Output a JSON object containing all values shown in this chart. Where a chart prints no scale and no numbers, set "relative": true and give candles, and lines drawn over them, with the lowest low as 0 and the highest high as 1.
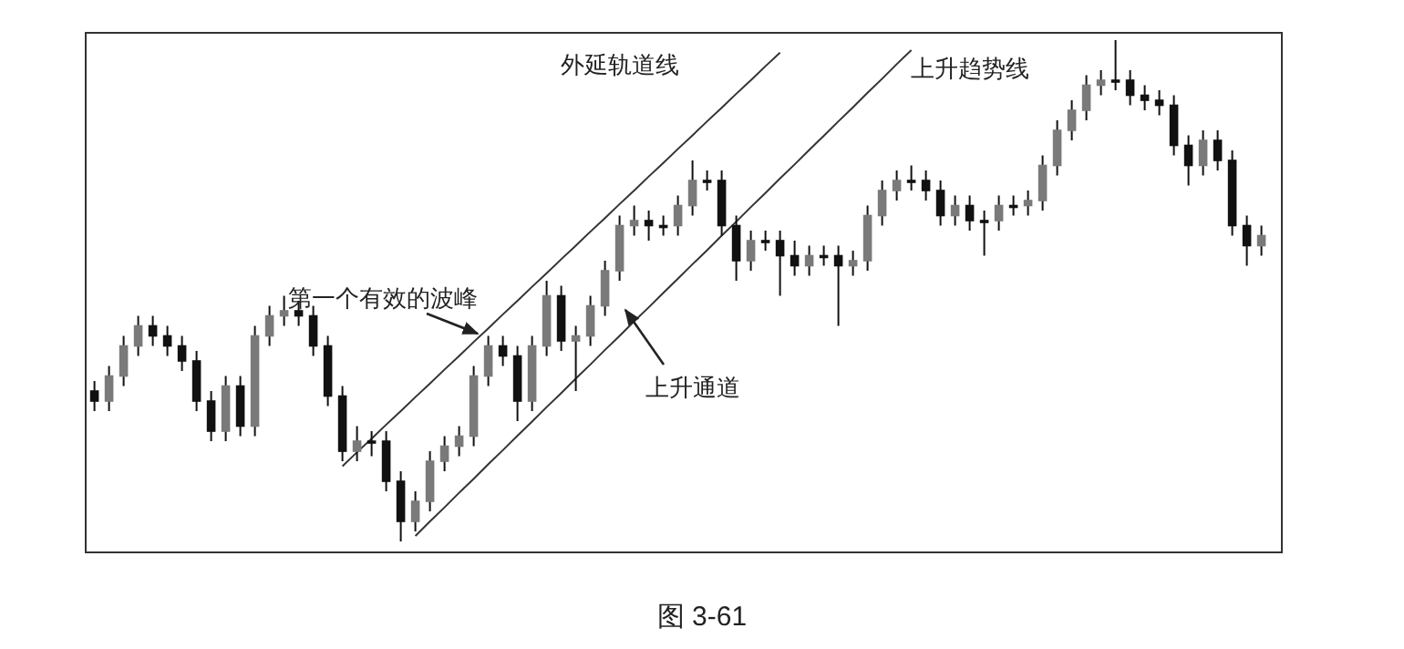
{
  "chart_data": {
    "type": "candlestick",
    "relative": true,
    "categories": [
      null,
      null,
      null,
      null,
      null,
      null,
      null,
      null,
      null,
      null,
      null,
      null,
      null,
      null,
      null,
      null,
      null,
      null,
      null,
      null,
      null,
      null,
      null,
      null,
      null,
      null,
      null,
      null,
      null,
      null,
      null,
      null,
      null,
      null,
      null,
      null,
      null,
      null,
      null,
      null,
      null,
      null,
      null,
      null,
      null,
      null,
      null,
      null,
      null,
      null,
      null,
      null,
      null,
      null,
      null,
      null,
      null,
      null,
      null,
      null,
      null,
      null,
      null,
      null,
      null,
      null,
      null,
      null,
      null,
      null,
      null,
      null,
      null,
      null,
      null,
      null,
      null,
      null,
      null,
      null,
      null
    ],
    "ohlc": [
      [
        0.3,
        0.32,
        0.26,
        0.28
      ],
      [
        0.28,
        0.35,
        0.26,
        0.33
      ],
      [
        0.33,
        0.41,
        0.31,
        0.39
      ],
      [
        0.39,
        0.45,
        0.37,
        0.43
      ],
      [
        0.43,
        0.45,
        0.39,
        0.41
      ],
      [
        0.41,
        0.43,
        0.37,
        0.39
      ],
      [
        0.39,
        0.41,
        0.34,
        0.36
      ],
      [
        0.36,
        0.38,
        0.26,
        0.28
      ],
      [
        0.28,
        0.3,
        0.2,
        0.22
      ],
      [
        0.22,
        0.33,
        0.2,
        0.31
      ],
      [
        0.31,
        0.33,
        0.21,
        0.23
      ],
      [
        0.23,
        0.43,
        0.21,
        0.41
      ],
      [
        0.41,
        0.47,
        0.39,
        0.45
      ],
      [
        0.45,
        0.49,
        0.43,
        0.46
      ],
      [
        0.46,
        0.48,
        0.43,
        0.45
      ],
      [
        0.45,
        0.47,
        0.37,
        0.39
      ],
      [
        0.39,
        0.41,
        0.27,
        0.29
      ],
      [
        0.29,
        0.31,
        0.16,
        0.18
      ],
      [
        0.18,
        0.23,
        0.16,
        0.2
      ],
      [
        0.2,
        0.22,
        0.17,
        0.2
      ],
      [
        0.2,
        0.22,
        0.1,
        0.12
      ],
      [
        0.12,
        0.14,
        0.0,
        0.04
      ],
      [
        0.04,
        0.1,
        0.02,
        0.08
      ],
      [
        0.08,
        0.18,
        0.06,
        0.16
      ],
      [
        0.16,
        0.21,
        0.14,
        0.19
      ],
      [
        0.19,
        0.23,
        0.17,
        0.21
      ],
      [
        0.21,
        0.35,
        0.19,
        0.33
      ],
      [
        0.33,
        0.41,
        0.31,
        0.39
      ],
      [
        0.39,
        0.41,
        0.35,
        0.37
      ],
      [
        0.37,
        0.39,
        0.24,
        0.28
      ],
      [
        0.28,
        0.41,
        0.26,
        0.39
      ],
      [
        0.39,
        0.52,
        0.37,
        0.49
      ],
      [
        0.49,
        0.51,
        0.38,
        0.4
      ],
      [
        0.4,
        0.43,
        0.3,
        0.41
      ],
      [
        0.41,
        0.49,
        0.39,
        0.47
      ],
      [
        0.47,
        0.56,
        0.45,
        0.54
      ],
      [
        0.54,
        0.65,
        0.52,
        0.63
      ],
      [
        0.63,
        0.67,
        0.61,
        0.64
      ],
      [
        0.64,
        0.66,
        0.6,
        0.63
      ],
      [
        0.63,
        0.65,
        0.61,
        0.63
      ],
      [
        0.63,
        0.69,
        0.61,
        0.67
      ],
      [
        0.67,
        0.76,
        0.65,
        0.72
      ],
      [
        0.72,
        0.74,
        0.7,
        0.72
      ],
      [
        0.72,
        0.74,
        0.61,
        0.63
      ],
      [
        0.63,
        0.65,
        0.52,
        0.56
      ],
      [
        0.56,
        0.62,
        0.54,
        0.6
      ],
      [
        0.6,
        0.62,
        0.58,
        0.6
      ],
      [
        0.6,
        0.62,
        0.49,
        0.57
      ],
      [
        0.57,
        0.6,
        0.53,
        0.55
      ],
      [
        0.55,
        0.59,
        0.53,
        0.57
      ],
      [
        0.57,
        0.59,
        0.55,
        0.57
      ],
      [
        0.57,
        0.59,
        0.43,
        0.55
      ],
      [
        0.55,
        0.58,
        0.53,
        0.56
      ],
      [
        0.56,
        0.67,
        0.54,
        0.65
      ],
      [
        0.65,
        0.72,
        0.63,
        0.7
      ],
      [
        0.7,
        0.74,
        0.68,
        0.72
      ],
      [
        0.72,
        0.75,
        0.7,
        0.72
      ],
      [
        0.72,
        0.74,
        0.68,
        0.7
      ],
      [
        0.7,
        0.72,
        0.63,
        0.65
      ],
      [
        0.65,
        0.69,
        0.63,
        0.67
      ],
      [
        0.67,
        0.69,
        0.62,
        0.64
      ],
      [
        0.64,
        0.66,
        0.57,
        0.64
      ],
      [
        0.64,
        0.69,
        0.62,
        0.67
      ],
      [
        0.67,
        0.69,
        0.65,
        0.67
      ],
      [
        0.67,
        0.7,
        0.65,
        0.68
      ],
      [
        0.68,
        0.77,
        0.66,
        0.75
      ],
      [
        0.75,
        0.84,
        0.73,
        0.82
      ],
      [
        0.82,
        0.88,
        0.8,
        0.86
      ],
      [
        0.86,
        0.93,
        0.84,
        0.91
      ],
      [
        0.91,
        0.94,
        0.89,
        0.92
      ],
      [
        0.92,
        1.0,
        0.9,
        0.92
      ],
      [
        0.92,
        0.94,
        0.87,
        0.89
      ],
      [
        0.89,
        0.91,
        0.86,
        0.88
      ],
      [
        0.88,
        0.9,
        0.85,
        0.87
      ],
      [
        0.87,
        0.89,
        0.77,
        0.79
      ],
      [
        0.79,
        0.81,
        0.71,
        0.75
      ],
      [
        0.75,
        0.82,
        0.73,
        0.8
      ],
      [
        0.8,
        0.82,
        0.74,
        0.76
      ],
      [
        0.76,
        0.78,
        0.61,
        0.63
      ],
      [
        0.63,
        0.65,
        0.55,
        0.59
      ],
      [
        0.59,
        0.63,
        0.57,
        0.61
      ]
    ],
    "series": [
      {
        "type": "line",
        "color": "#333333",
        "values": [
          null,
          null,
          null,
          null,
          null,
          null,
          null,
          null,
          null,
          null,
          null,
          null,
          null,
          null,
          null,
          null,
          null,
          0.15,
          0.178,
          0.205,
          0.233,
          0.26,
          0.288,
          0.315,
          0.343,
          0.37,
          0.398,
          0.425,
          0.453,
          0.48,
          0.508,
          0.535,
          0.563,
          0.59,
          0.618,
          0.645,
          0.673,
          0.7,
          0.728,
          0.755,
          0.783,
          0.81,
          0.838,
          0.865,
          0.893,
          0.92,
          0.948,
          0.975,
          null,
          null,
          null,
          null,
          null,
          null,
          null,
          null,
          null,
          null,
          null,
          null,
          null,
          null,
          null,
          null,
          null,
          null,
          null,
          null,
          null,
          null,
          null,
          null,
          null,
          null,
          null,
          null,
          null,
          null,
          null,
          null,
          null
        ]
      },
      {
        "type": "line",
        "color": "#333333",
        "values": [
          null,
          null,
          null,
          null,
          null,
          null,
          null,
          null,
          null,
          null,
          null,
          null,
          null,
          null,
          null,
          null,
          null,
          null,
          null,
          null,
          null,
          null,
          0.011,
          0.04,
          0.068,
          0.097,
          0.125,
          0.154,
          0.182,
          0.211,
          0.239,
          0.268,
          0.296,
          0.325,
          0.353,
          0.382,
          0.41,
          0.439,
          0.467,
          0.496,
          0.524,
          0.553,
          0.581,
          0.61,
          0.638,
          0.667,
          0.695,
          0.724,
          0.752,
          0.781,
          0.809,
          0.838,
          0.866,
          0.895,
          0.923,
          0.952,
          0.98,
          null,
          null,
          null,
          null,
          null,
          null,
          null,
          null,
          null,
          null,
          null,
          null,
          null,
          null,
          null,
          null,
          null,
          null,
          null,
          null,
          null,
          null,
          null,
          null
        ]
      }
    ],
    "annotations": [
      "外延轨道线",
      "上升趋势线",
      "第一个有效的波峰",
      "上升通道",
      "图 3-61"
    ]
  }
}
